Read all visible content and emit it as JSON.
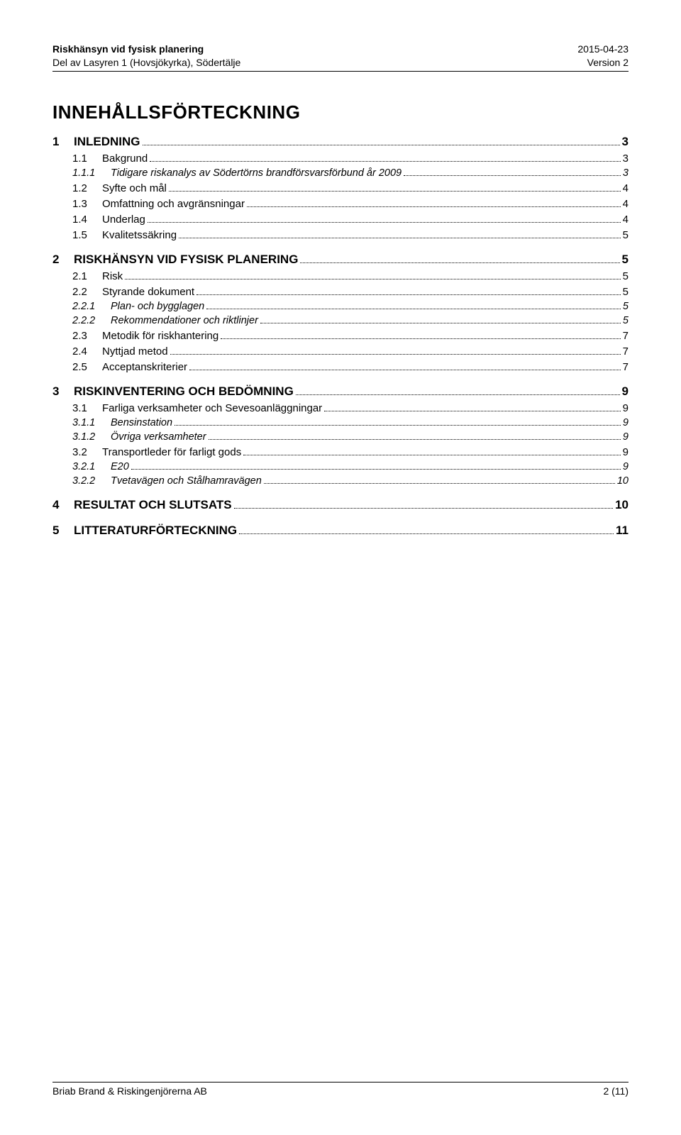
{
  "header": {
    "left_title": "Riskhänsyn vid fysisk planering",
    "left_sub": "Del av Lasyren 1 (Hovsjökyrka), Södertälje",
    "right_date": "2015-04-23",
    "right_version": "Version 2"
  },
  "title": "INNEHÅLLSFÖRTECKNING",
  "toc": [
    {
      "level": 1,
      "num": "1",
      "label": "INLEDNING",
      "page": "3"
    },
    {
      "level": 2,
      "num": "1.1",
      "label": "Bakgrund",
      "page": "3"
    },
    {
      "level": 3,
      "num": "1.1.1",
      "label": "Tidigare riskanalys av Södertörns brandförsvarsförbund år 2009",
      "page": "3"
    },
    {
      "level": 2,
      "num": "1.2",
      "label": "Syfte och mål",
      "page": "4"
    },
    {
      "level": 2,
      "num": "1.3",
      "label": "Omfattning och avgränsningar",
      "page": "4"
    },
    {
      "level": 2,
      "num": "1.4",
      "label": "Underlag",
      "page": "4"
    },
    {
      "level": 2,
      "num": "1.5",
      "label": "Kvalitetssäkring",
      "page": "5"
    },
    {
      "level": 1,
      "num": "2",
      "label": "RISKHÄNSYN VID FYSISK PLANERING",
      "page": "5"
    },
    {
      "level": 2,
      "num": "2.1",
      "label": "Risk",
      "page": "5"
    },
    {
      "level": 2,
      "num": "2.2",
      "label": "Styrande dokument",
      "page": "5"
    },
    {
      "level": 3,
      "num": "2.2.1",
      "label": "Plan- och bygglagen",
      "page": "5"
    },
    {
      "level": 3,
      "num": "2.2.2",
      "label": "Rekommendationer och riktlinjer",
      "page": "5"
    },
    {
      "level": 2,
      "num": "2.3",
      "label": "Metodik för riskhantering",
      "page": "7"
    },
    {
      "level": 2,
      "num": "2.4",
      "label": "Nyttjad metod",
      "page": "7"
    },
    {
      "level": 2,
      "num": "2.5",
      "label": "Acceptanskriterier",
      "page": "7"
    },
    {
      "level": 1,
      "num": "3",
      "label": "RISKINVENTERING OCH BEDÖMNING",
      "page": "9"
    },
    {
      "level": 2,
      "num": "3.1",
      "label": "Farliga verksamheter och Sevesoanläggningar",
      "page": "9"
    },
    {
      "level": 3,
      "num": "3.1.1",
      "label": "Bensinstation",
      "page": "9"
    },
    {
      "level": 3,
      "num": "3.1.2",
      "label": "Övriga verksamheter",
      "page": "9"
    },
    {
      "level": 2,
      "num": "3.2",
      "label": "Transportleder för farligt gods",
      "page": "9"
    },
    {
      "level": 3,
      "num": "3.2.1",
      "label": "E20",
      "page": "9"
    },
    {
      "level": 3,
      "num": "3.2.2",
      "label": "Tvetavägen och Stålhamravägen",
      "page": "10"
    },
    {
      "level": 1,
      "num": "4",
      "label": "RESULTAT OCH SLUTSATS",
      "page": "10"
    },
    {
      "level": 1,
      "num": "5",
      "label": "LITTERATURFÖRTECKNING",
      "page": "11"
    }
  ],
  "footer": {
    "left": "Briab Brand & Riskingenjörerna AB",
    "right": "2 (11)"
  },
  "colors": {
    "text": "#000000",
    "background": "#ffffff",
    "rule": "#000000"
  },
  "typography": {
    "base_font": "Arial",
    "title_size_pt": 20,
    "lvl1_size_pt": 13,
    "lvl2_size_pt": 11,
    "lvl3_size_pt": 11,
    "header_size_pt": 10
  }
}
